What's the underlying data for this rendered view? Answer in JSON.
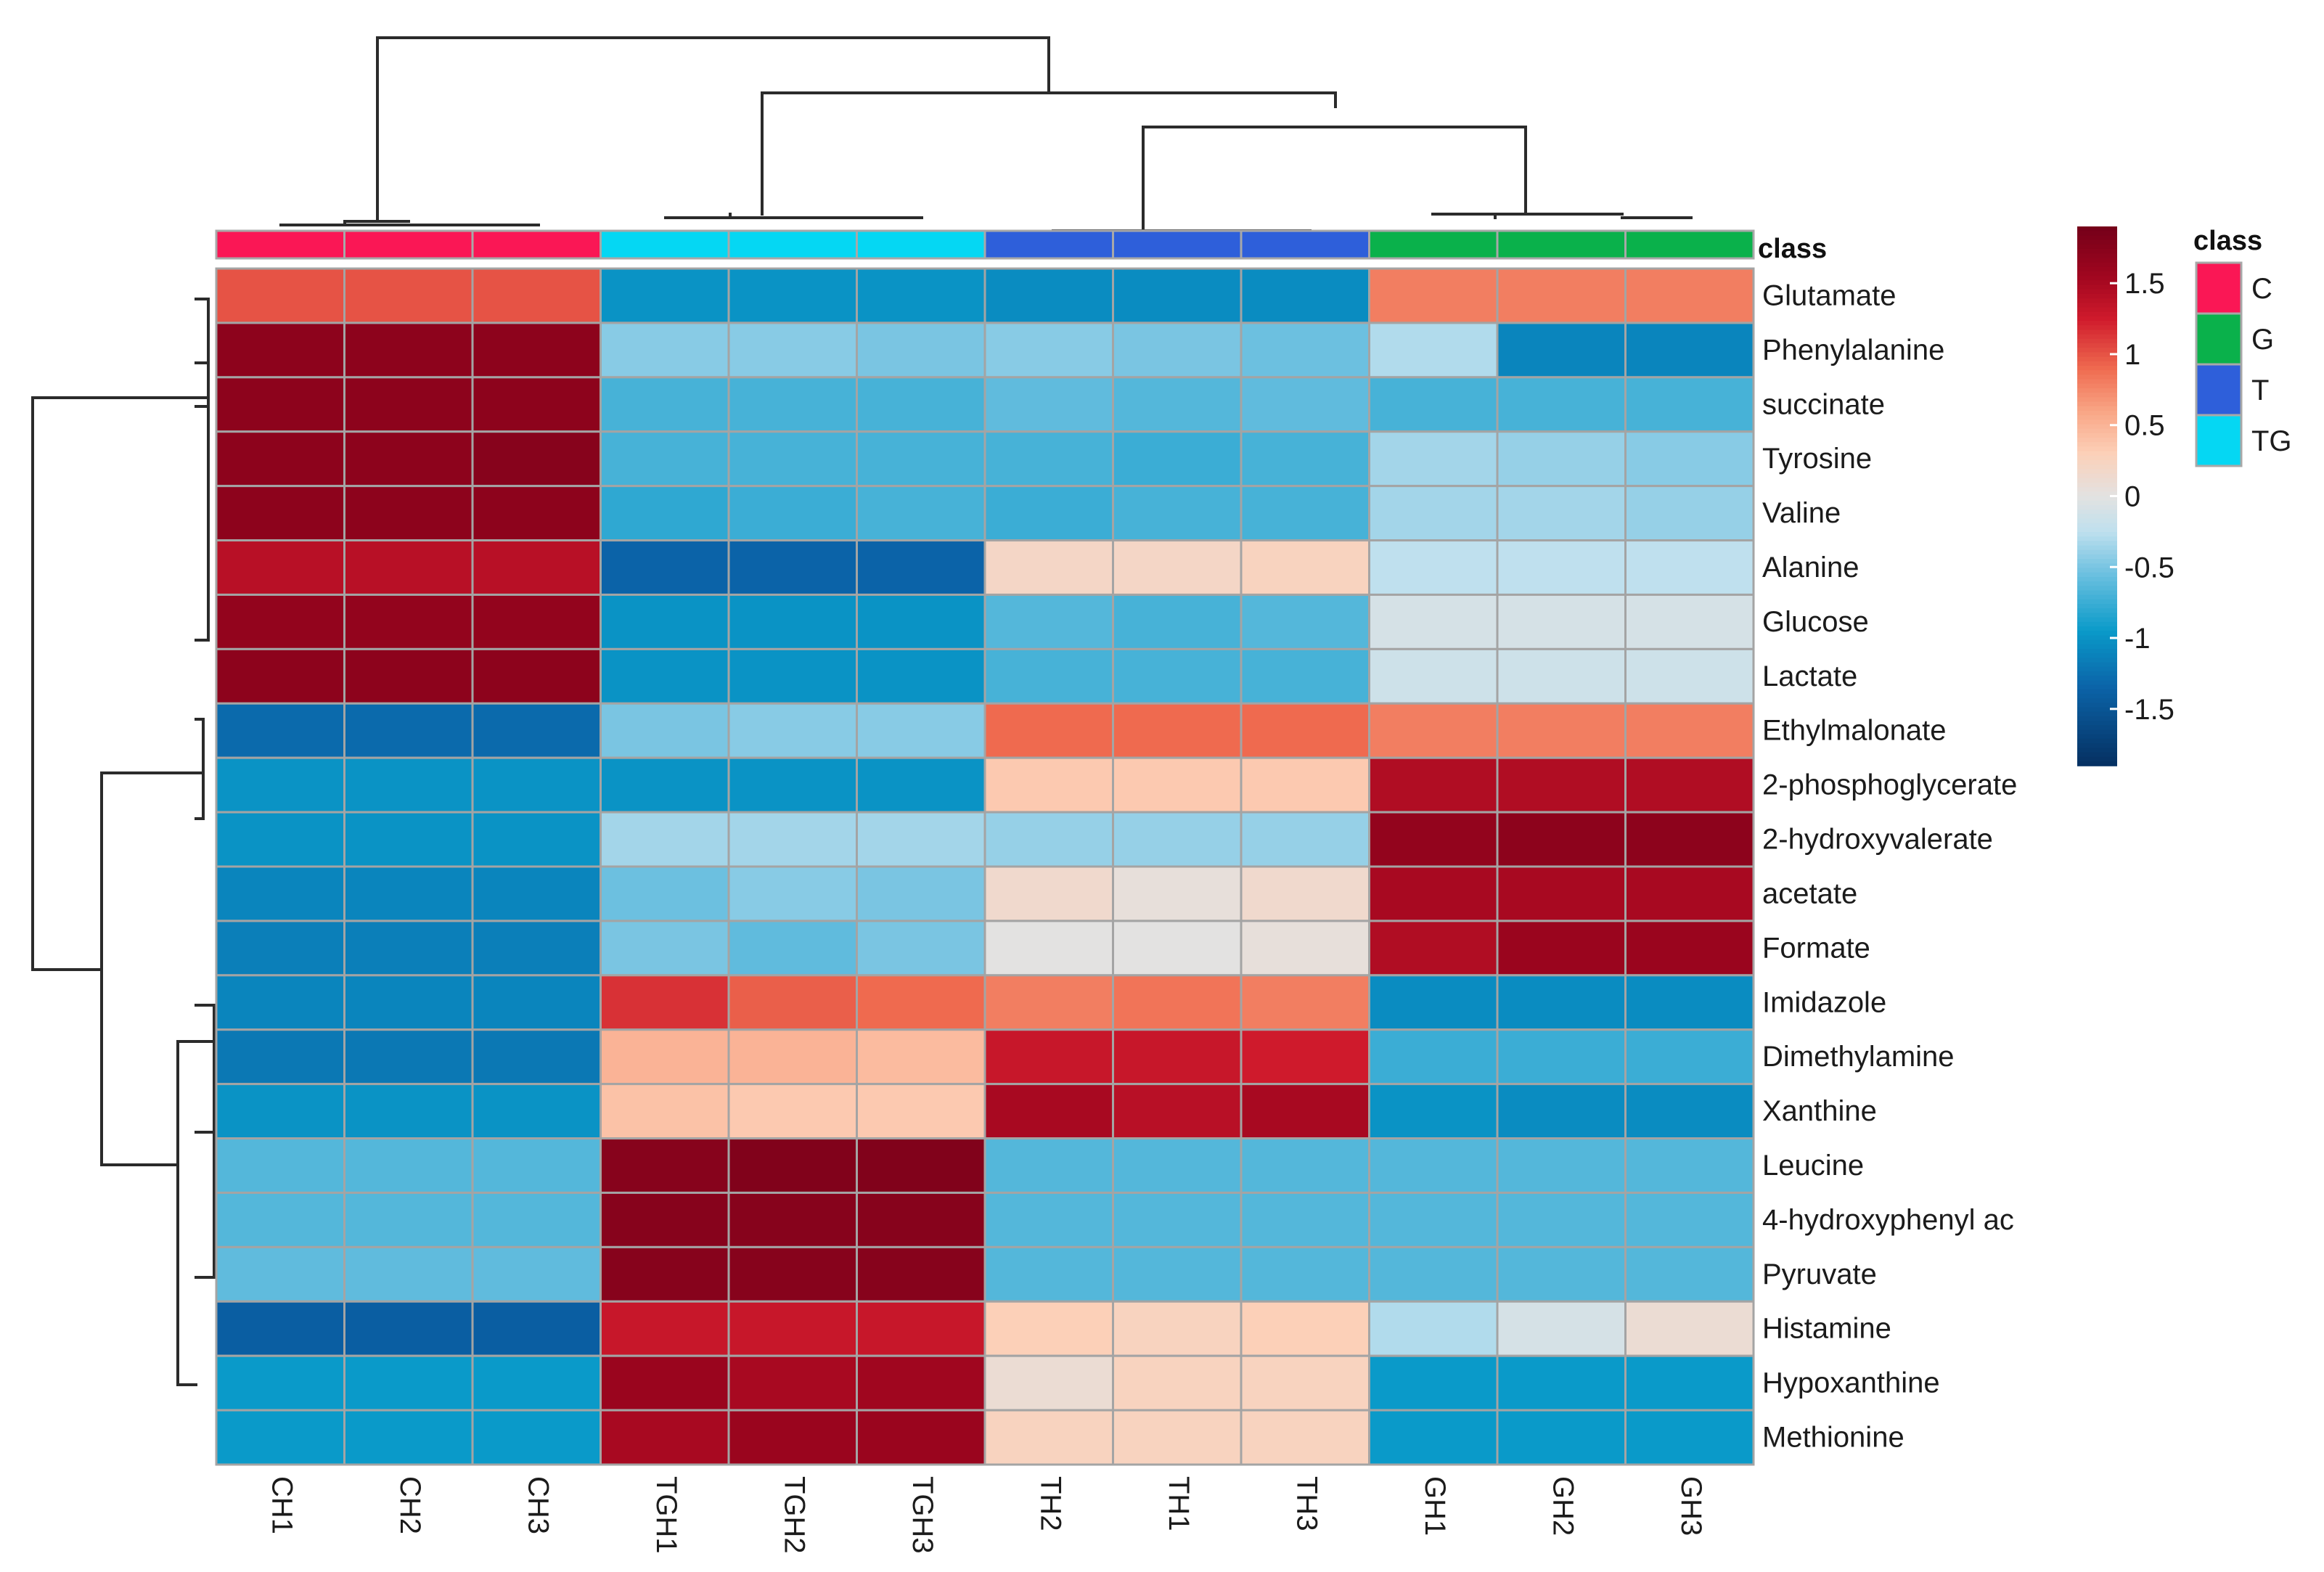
{
  "chart_data": {
    "type": "heatmap",
    "columns": [
      "CH1",
      "CH2",
      "CH3",
      "TGH1",
      "TGH2",
      "TGH3",
      "TH2",
      "TH1",
      "TH3",
      "GH1",
      "GH2",
      "GH3"
    ],
    "column_classes": [
      "C",
      "C",
      "C",
      "TG",
      "TG",
      "TG",
      "T",
      "T",
      "T",
      "G",
      "G",
      "G"
    ],
    "rows": [
      "Glutamate",
      "Phenylalanine",
      "succinate",
      "Tyrosine",
      "Valine",
      "Alanine",
      "Glucose",
      "Lactate",
      "Ethylmalonate",
      "2-phosphoglycerate",
      "2-hydroxyvalerate",
      "acetate",
      "Formate",
      "Imidazole",
      "Dimethylamine",
      "Xanthine",
      "Leucine",
      "4-hydroxyphenyl ac",
      "Pyruvate",
      "Histamine",
      "Hypoxanthine",
      "Methionine"
    ],
    "values": [
      [
        1.0,
        1.0,
        1.0,
        -1.0,
        -1.0,
        -1.0,
        -1.05,
        -1.05,
        -1.05,
        0.8,
        0.8,
        0.8
      ],
      [
        1.7,
        1.7,
        1.7,
        -0.45,
        -0.45,
        -0.5,
        -0.45,
        -0.5,
        -0.55,
        -0.3,
        -1.1,
        -1.1
      ],
      [
        1.7,
        1.7,
        1.7,
        -0.7,
        -0.7,
        -0.7,
        -0.6,
        -0.65,
        -0.6,
        -0.7,
        -0.7,
        -0.7
      ],
      [
        1.7,
        1.7,
        1.75,
        -0.7,
        -0.7,
        -0.7,
        -0.7,
        -0.75,
        -0.7,
        -0.35,
        -0.4,
        -0.45
      ],
      [
        1.7,
        1.7,
        1.7,
        -0.8,
        -0.75,
        -0.7,
        -0.75,
        -0.7,
        -0.7,
        -0.35,
        -0.35,
        -0.4
      ],
      [
        1.4,
        1.4,
        1.4,
        -1.35,
        -1.35,
        -1.35,
        0.2,
        0.2,
        0.25,
        -0.25,
        -0.25,
        -0.25
      ],
      [
        1.65,
        1.65,
        1.65,
        -1.0,
        -1.0,
        -1.0,
        -0.65,
        -0.7,
        -0.65,
        -0.1,
        -0.1,
        -0.1
      ],
      [
        1.7,
        1.7,
        1.7,
        -1.0,
        -1.0,
        -1.0,
        -0.7,
        -0.7,
        -0.7,
        -0.15,
        -0.15,
        -0.15
      ],
      [
        -1.3,
        -1.3,
        -1.3,
        -0.5,
        -0.45,
        -0.45,
        0.9,
        0.9,
        0.9,
        0.8,
        0.8,
        0.8
      ],
      [
        -1.0,
        -1.0,
        -1.0,
        -1.0,
        -1.0,
        -1.0,
        0.35,
        0.35,
        0.35,
        1.45,
        1.45,
        1.45
      ],
      [
        -1.0,
        -1.0,
        -1.0,
        -0.35,
        -0.35,
        -0.35,
        -0.4,
        -0.4,
        -0.4,
        1.65,
        1.7,
        1.7
      ],
      [
        -1.1,
        -1.1,
        -1.1,
        -0.55,
        -0.45,
        -0.5,
        0.15,
        0.05,
        0.15,
        1.5,
        1.5,
        1.5
      ],
      [
        -1.15,
        -1.15,
        -1.15,
        -0.5,
        -0.6,
        -0.5,
        0.0,
        0.0,
        0.05,
        1.45,
        1.6,
        1.6
      ],
      [
        -1.1,
        -1.1,
        -1.1,
        1.15,
        0.95,
        0.9,
        0.8,
        0.85,
        0.8,
        -1.05,
        -1.05,
        -1.05
      ],
      [
        -1.2,
        -1.2,
        -1.2,
        0.5,
        0.5,
        0.45,
        1.3,
        1.3,
        1.25,
        -0.75,
        -0.75,
        -0.75
      ],
      [
        -1.0,
        -1.0,
        -1.0,
        0.4,
        0.35,
        0.35,
        1.5,
        1.4,
        1.5,
        -1.0,
        -1.05,
        -1.05
      ],
      [
        -0.65,
        -0.65,
        -0.65,
        1.75,
        1.8,
        1.8,
        -0.65,
        -0.65,
        -0.65,
        -0.65,
        -0.65,
        -0.65
      ],
      [
        -0.65,
        -0.65,
        -0.65,
        1.75,
        1.75,
        1.75,
        -0.65,
        -0.65,
        -0.65,
        -0.65,
        -0.65,
        -0.65
      ],
      [
        -0.6,
        -0.6,
        -0.6,
        1.75,
        1.75,
        1.75,
        -0.65,
        -0.65,
        -0.65,
        -0.65,
        -0.65,
        -0.65
      ],
      [
        -1.4,
        -1.4,
        -1.4,
        1.3,
        1.3,
        1.3,
        0.3,
        0.25,
        0.3,
        -0.3,
        -0.1,
        0.1
      ],
      [
        -0.95,
        -0.95,
        -0.95,
        1.6,
        1.5,
        1.55,
        0.1,
        0.25,
        0.25,
        -0.95,
        -0.95,
        -0.95
      ],
      [
        -0.95,
        -0.95,
        -0.95,
        1.5,
        1.6,
        1.6,
        0.25,
        0.25,
        0.25,
        -0.95,
        -0.95,
        -0.95
      ]
    ],
    "color_scale": {
      "ticks": [
        "1.5",
        "1",
        "0.5",
        "0",
        "-0.5",
        "-1",
        "-1.5"
      ],
      "tick_values": [
        1.5,
        1.0,
        0.5,
        0.0,
        -0.5,
        -1.0,
        -1.5
      ],
      "min": -1.9,
      "max": 1.9,
      "stops": [
        {
          "v": -1.9,
          "c": "#053061"
        },
        {
          "v": -1.35,
          "c": "#0b63a8"
        },
        {
          "v": -0.95,
          "c": "#0a9ac9"
        },
        {
          "v": -0.55,
          "c": "#6cc0e0"
        },
        {
          "v": -0.25,
          "c": "#bfe0ee"
        },
        {
          "v": 0.0,
          "c": "#e3e2e1"
        },
        {
          "v": 0.3,
          "c": "#fcd0b8"
        },
        {
          "v": 0.6,
          "c": "#f9a585"
        },
        {
          "v": 0.9,
          "c": "#ef6a4f"
        },
        {
          "v": 1.25,
          "c": "#cf1a2c"
        },
        {
          "v": 1.55,
          "c": "#a0061f"
        },
        {
          "v": 1.9,
          "c": "#740019"
        }
      ]
    },
    "annotation": {
      "label": "class",
      "legend_title": "class",
      "classes": [
        {
          "name": "C",
          "color": "#fa1755"
        },
        {
          "name": "G",
          "color": "#0ab14b"
        },
        {
          "name": "T",
          "color": "#2e5fda"
        },
        {
          "name": "TG",
          "color": "#05d7f3"
        }
      ]
    }
  }
}
